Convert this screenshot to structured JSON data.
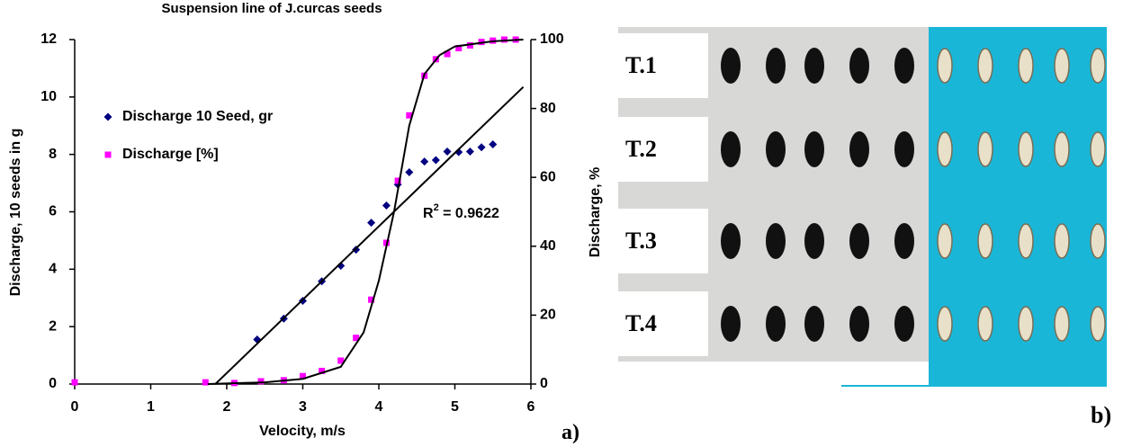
{
  "chart_data": {
    "type": "scatter",
    "title": "Suspension line of J.curcas seeds",
    "x_label": "Velocity, m/s",
    "y_label": "Discharge, 10 seeds in g",
    "y2_label": "Discharge, %",
    "xlim": [
      0,
      6
    ],
    "xticks": [
      0,
      1,
      2,
      3,
      4,
      5,
      6
    ],
    "ylim": [
      0,
      12
    ],
    "yticks": [
      0,
      2,
      4,
      6,
      8,
      10,
      12
    ],
    "y2lim": [
      0,
      100
    ],
    "y2ticks": [
      0,
      20,
      40,
      60,
      80,
      100
    ],
    "series": [
      {
        "name": "Discharge  10 Seed, gr",
        "color": "#000080",
        "marker": "diamond",
        "x": [
          2.4,
          2.75,
          3.0,
          3.25,
          3.5,
          3.7,
          3.9,
          4.1,
          4.25,
          4.4,
          4.6,
          4.75,
          4.9,
          5.05,
          5.2,
          5.35,
          5.5
        ],
        "values": [
          1.55,
          2.28,
          2.9,
          3.58,
          4.12,
          4.68,
          5.62,
          6.22,
          6.95,
          7.38,
          7.75,
          7.8,
          8.1,
          8.08,
          8.1,
          8.25,
          8.35
        ]
      },
      {
        "name": "Discharge  [%]",
        "color": "#ff00ff",
        "marker": "square",
        "axis": "y2",
        "x": [
          0,
          1.72,
          2.1,
          2.45,
          2.75,
          3.0,
          3.25,
          3.5,
          3.7,
          3.9,
          4.1,
          4.25,
          4.4,
          4.6,
          4.75,
          4.9,
          5.05,
          5.2,
          5.35,
          5.5,
          5.65,
          5.8
        ],
        "values": [
          0.5,
          0.5,
          0.3,
          0.8,
          1.1,
          2.3,
          3.8,
          6.8,
          13.4,
          24.5,
          41,
          59,
          78,
          89.5,
          94.3,
          95.8,
          97.5,
          98.3,
          99.3,
          99.7,
          100,
          100
        ]
      },
      {
        "color": "#000000",
        "marker": "line",
        "x": [
          1.85,
          5.9
        ],
        "values": [
          0,
          10.35
        ]
      },
      {
        "color": "#000000",
        "marker": "line",
        "axis": "y2",
        "x": [
          1.75,
          2.5,
          3.0,
          3.5,
          3.8,
          4.0,
          4.2,
          4.4,
          4.6,
          4.8,
          5.0,
          5.5,
          5.9
        ],
        "values": [
          0,
          0.5,
          1.5,
          5,
          15,
          30,
          50,
          75,
          90,
          95.5,
          98,
          99.5,
          100
        ]
      }
    ],
    "annotation": {
      "text": "R",
      "sup": "2",
      "rest": " = 0.9622"
    }
  },
  "panel_a_label": "a)",
  "photo": {
    "rows": [
      "T.1",
      "T.2",
      "T.3",
      "T.4"
    ],
    "label": "b)"
  }
}
